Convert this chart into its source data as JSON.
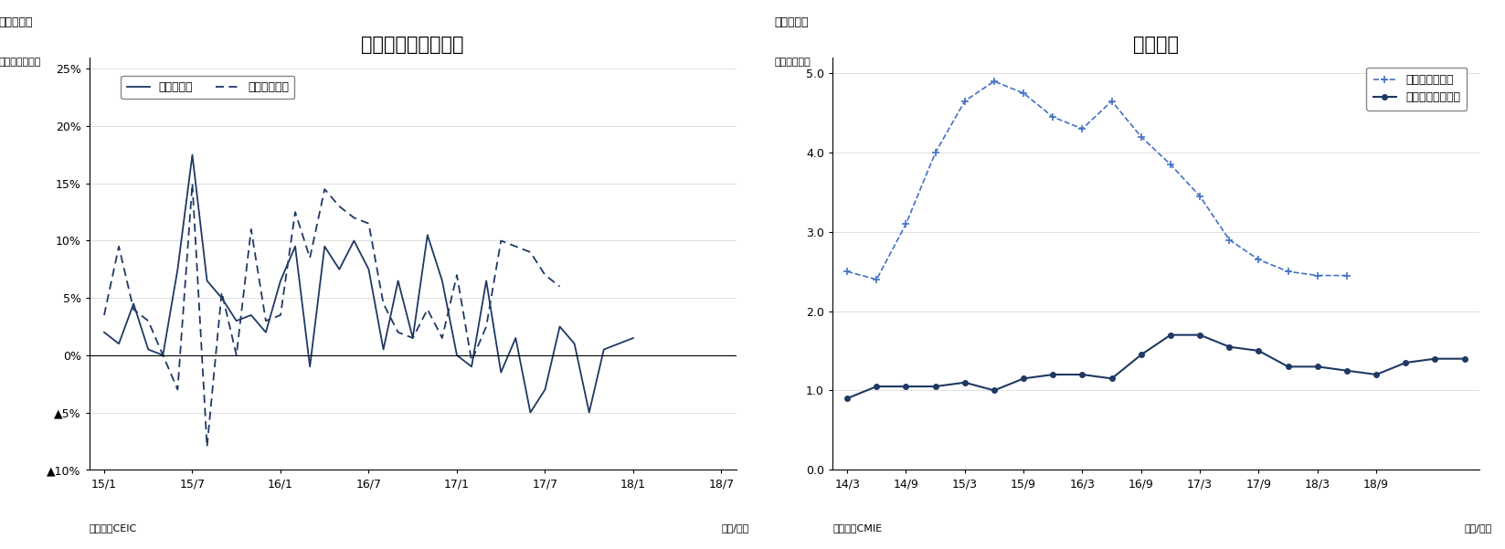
{
  "chart5": {
    "title": "消費関連の生産指標",
    "subtitle_fig": "（図表５）",
    "ylabel": "（前年同月比）",
    "source": "（資料）CEIC",
    "year_month_label": "（年/月）",
    "ylim": [
      -0.1,
      0.26
    ],
    "yticks": [
      -0.1,
      -0.05,
      0.0,
      0.05,
      0.1,
      0.15,
      0.2,
      0.25
    ],
    "ytick_labels": [
      "▲10%",
      "▲5%",
      "0%",
      "5%",
      "10%",
      "15%",
      "20%",
      "25%"
    ],
    "xtick_labels": [
      "15/1",
      "15/7",
      "16/1",
      "16/7",
      "17/1",
      "17/7",
      "18/1",
      "18/7"
    ],
    "line_color": "#1F3864",
    "durable": [
      2.0,
      1.0,
      4.5,
      0.5,
      0.0,
      7.5,
      17.5,
      6.5,
      5.0,
      3.0,
      3.5,
      2.0,
      6.5,
      9.5,
      -1.0,
      9.5,
      7.5,
      10.0,
      7.5,
      0.5,
      6.5,
      1.5,
      10.5,
      6.5,
      0.0,
      -1.0,
      6.5,
      -1.5,
      1.5,
      -5.0,
      -3.0,
      2.5,
      1.0,
      -5.0,
      0.5,
      1.0,
      1.5
    ],
    "nondurable": [
      3.5,
      9.5,
      4.0,
      3.0,
      0.0,
      -3.0,
      15.0,
      -8.0,
      5.5,
      0.0,
      11.0,
      3.0,
      3.5,
      12.5,
      8.5,
      14.5,
      13.0,
      12.0,
      11.5,
      4.5,
      2.0,
      1.5,
      4.0,
      1.5,
      7.0,
      -0.5,
      2.5,
      10.0,
      9.5,
      9.0,
      7.0,
      6.0
    ],
    "durable_label": "耐久消費財",
    "nondurable_label": "非耐久消費財"
  },
  "chart6": {
    "title": "投資計画",
    "subtitle_fig": "（図表６）",
    "ylabel": "（兆ルピー）",
    "source": "（資料）CMIE",
    "year_month_label": "（年/月）",
    "ylim": [
      0.0,
      5.2
    ],
    "yticks": [
      0.0,
      1.0,
      2.0,
      3.0,
      4.0,
      5.0
    ],
    "xtick_labels": [
      "14/3",
      "14/9",
      "15/3",
      "15/9",
      "16/3",
      "16/9",
      "17/3",
      "17/9",
      "18/3",
      "18/9"
    ],
    "line_color_new": "#4472C4",
    "line_color_comp": "#1F3864",
    "new_plan": [
      2.5,
      2.4,
      3.1,
      4.0,
      4.65,
      4.9,
      4.75,
      4.45,
      4.3,
      4.65,
      4.2,
      3.85,
      3.45,
      2.9,
      2.65,
      2.5,
      2.45,
      2.45
    ],
    "comp_plan": [
      0.9,
      1.05,
      1.05,
      1.05,
      1.1,
      1.0,
      1.15,
      1.2,
      1.2,
      1.15,
      1.45,
      1.7,
      1.7,
      1.55,
      1.5,
      1.3,
      1.3,
      1.25,
      1.2,
      1.35,
      1.4,
      1.4
    ],
    "new_label": "新規の投資計画",
    "comp_label": "完了した投資計画"
  }
}
